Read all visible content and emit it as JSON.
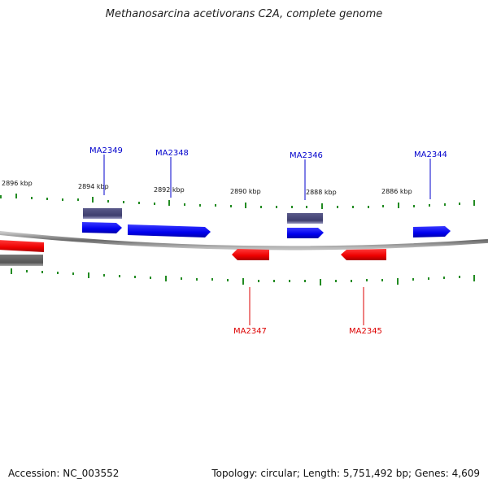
{
  "title": "Methanosarcina acetivorans C2A, complete genome",
  "accession": "Accession: NC_003552",
  "summary": "Topology: circular; Length: 5,751,492 bp; Genes: 4,609",
  "colors": {
    "forward_gene": "#0000ff",
    "reverse_gene": "#ff0000",
    "forward_label": "#0000cc",
    "reverse_label": "#dd0000",
    "feature_forward": "#4a4a7a",
    "feature_reverse": "#666666",
    "tick": "#228b22",
    "backbone": "#888888"
  },
  "tick_labels": [
    "2896 kbp",
    "2894 kbp",
    "2892 kbp",
    "2890 kbp",
    "2888 kbp",
    "2886 kbp"
  ],
  "genes": {
    "forward": [
      "MA2349",
      "MA2348",
      "MA2346",
      "MA2344"
    ],
    "reverse": [
      "MA2347",
      "MA2345"
    ]
  }
}
